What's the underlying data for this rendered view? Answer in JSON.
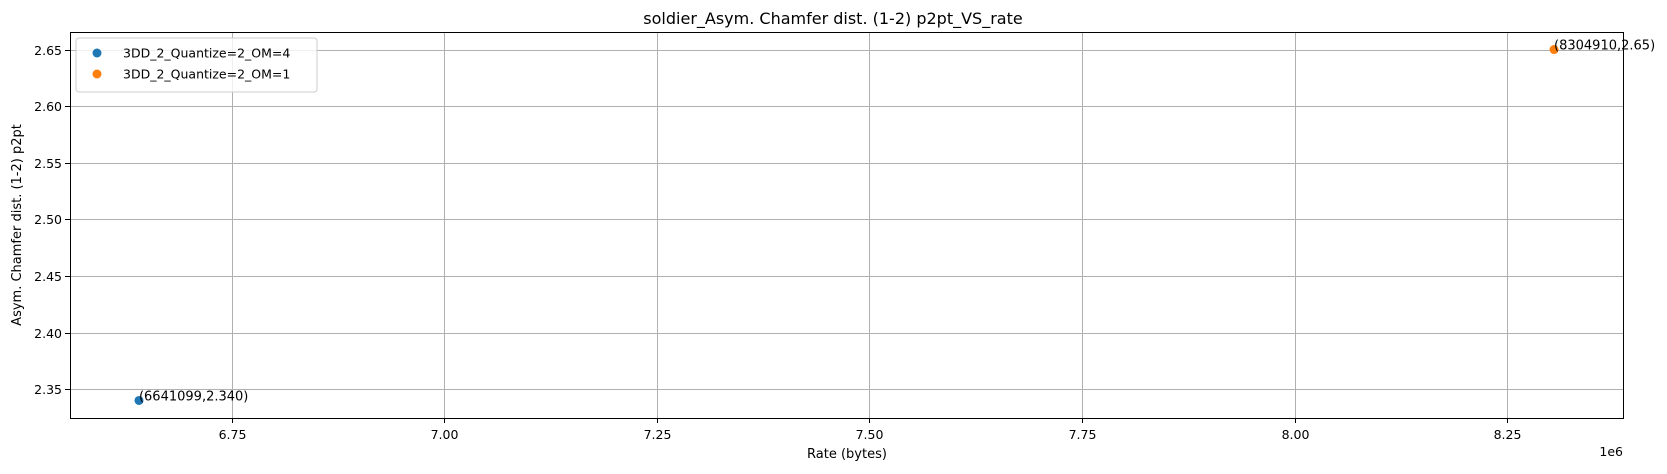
{
  "chart_data": {
    "type": "scatter",
    "title": "soldier_Asym. Chamfer dist. (1-2) p2pt_VS_rate",
    "xlabel": "Rate (bytes)",
    "ylabel": "Asym. Chamfer dist. (1-2) p2pt",
    "x_offset_label": "1e6",
    "x_scale": 1000000,
    "xlim": [
      6560000,
      8386000
    ],
    "ylim": [
      2.3245,
      2.6655
    ],
    "xticks": [
      {
        "value": 6750000,
        "label": "6.75"
      },
      {
        "value": 7000000,
        "label": "7.00"
      },
      {
        "value": 7250000,
        "label": "7.25"
      },
      {
        "value": 7500000,
        "label": "7.50"
      },
      {
        "value": 7750000,
        "label": "7.75"
      },
      {
        "value": 8000000,
        "label": "8.00"
      },
      {
        "value": 8250000,
        "label": "8.25"
      }
    ],
    "yticks": [
      {
        "value": 2.35,
        "label": "2.35"
      },
      {
        "value": 2.4,
        "label": "2.40"
      },
      {
        "value": 2.45,
        "label": "2.45"
      },
      {
        "value": 2.5,
        "label": "2.50"
      },
      {
        "value": 2.55,
        "label": "2.55"
      },
      {
        "value": 2.6,
        "label": "2.60"
      },
      {
        "value": 2.65,
        "label": "2.65"
      }
    ],
    "grid": true,
    "legend_position": "top-left",
    "series": [
      {
        "name": "3DD_2_Quantize=2_OM=4",
        "color": "#1f77b4",
        "points": [
          {
            "x": 6641099,
            "y": 2.34,
            "label": "(6641099,2.340)"
          }
        ]
      },
      {
        "name": "3DD_2_Quantize=2_OM=1",
        "color": "#ff7f0e",
        "points": [
          {
            "x": 8304910,
            "y": 2.65,
            "label": "(8304910,2.65)"
          }
        ]
      }
    ]
  }
}
